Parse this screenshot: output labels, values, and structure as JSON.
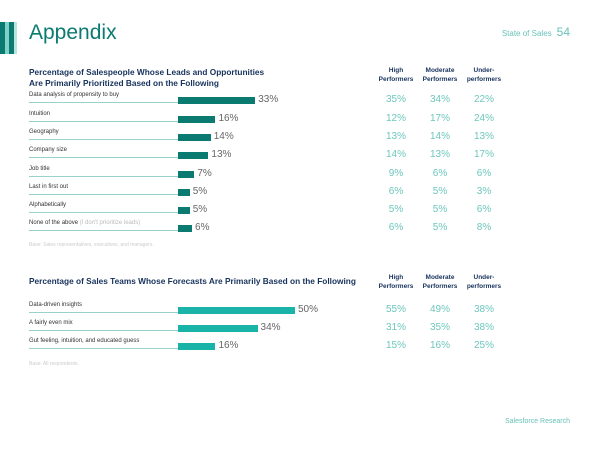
{
  "header": {
    "title": "Appendix",
    "publication": "State of Sales",
    "page_number": "54"
  },
  "colors": {
    "dark_teal": "#0b7a70",
    "light_teal": "#1ab3a8",
    "value_text": "#6cc7bd"
  },
  "columns": [
    "High Performers",
    "Moderate Performers",
    "Under-performers"
  ],
  "chart1": {
    "title_line1": "Percentage of Salespeople Whose Leads and Opportunities",
    "title_line2": "Are Primarily Prioritized Based on the Following",
    "rows": [
      {
        "label": "Data analysis of propensity to buy",
        "sub": "",
        "overall": 33,
        "overall_text": "33%",
        "high": "35%",
        "moderate": "34%",
        "under": "22%"
      },
      {
        "label": "Intuition",
        "sub": "",
        "overall": 16,
        "overall_text": "16%",
        "high": "12%",
        "moderate": "17%",
        "under": "24%"
      },
      {
        "label": "Geography",
        "sub": "",
        "overall": 14,
        "overall_text": "14%",
        "high": "13%",
        "moderate": "14%",
        "under": "13%"
      },
      {
        "label": "Company size",
        "sub": "",
        "overall": 13,
        "overall_text": "13%",
        "high": "14%",
        "moderate": "13%",
        "under": "17%"
      },
      {
        "label": "Job title",
        "sub": "",
        "overall": 7,
        "overall_text": "7%",
        "high": "9%",
        "moderate": "6%",
        "under": "6%"
      },
      {
        "label": "Last in first out",
        "sub": "",
        "overall": 5,
        "overall_text": "5%",
        "high": "6%",
        "moderate": "5%",
        "under": "3%"
      },
      {
        "label": "Alphabetically",
        "sub": "",
        "overall": 5,
        "overall_text": "5%",
        "high": "5%",
        "moderate": "5%",
        "under": "6%"
      },
      {
        "label": "None of the above",
        "sub": "(I don't prioritize leads)",
        "overall": 6,
        "overall_text": "6%",
        "high": "6%",
        "moderate": "5%",
        "under": "8%"
      }
    ],
    "base": "Base: Sales representatives, executives, and managers."
  },
  "chart2": {
    "title": "Percentage of Sales Teams Whose Forecasts Are Primarily Based on the Following",
    "rows": [
      {
        "label": "Data-driven insights",
        "sub": "",
        "overall": 50,
        "overall_text": "50%",
        "high": "55%",
        "moderate": "49%",
        "under": "38%"
      },
      {
        "label": "A fairly even mix",
        "sub": "",
        "overall": 34,
        "overall_text": "34%",
        "high": "31%",
        "moderate": "35%",
        "under": "38%"
      },
      {
        "label": "Gut feeling, intuition, and educated guess",
        "sub": "",
        "overall": 16,
        "overall_text": "16%",
        "high": "15%",
        "moderate": "16%",
        "under": "25%"
      }
    ],
    "base": "Base: All respondents."
  },
  "footer": "Salesforce Research"
}
